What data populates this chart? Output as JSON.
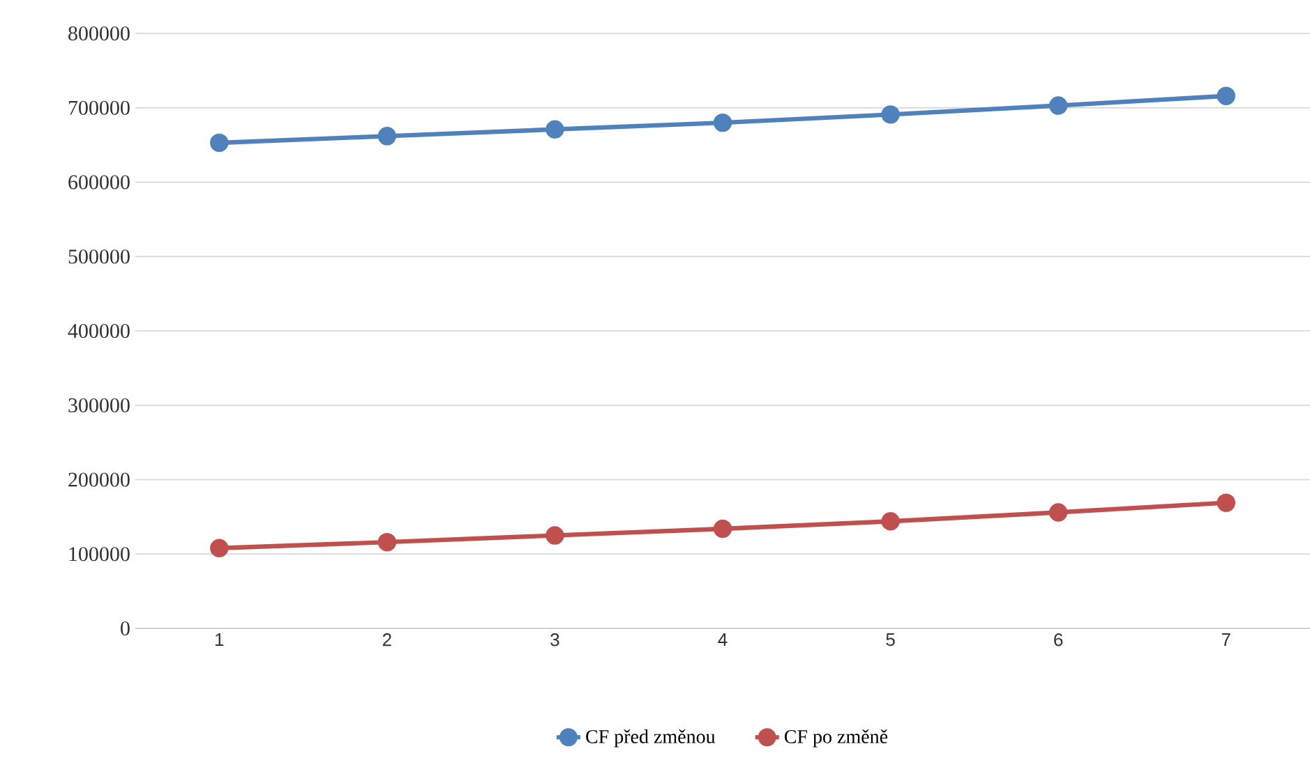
{
  "chart_data": {
    "type": "line",
    "categories": [
      "1",
      "2",
      "3",
      "4",
      "5",
      "6",
      "7"
    ],
    "series": [
      {
        "name": "CF před změnou",
        "color": "#4f81bd",
        "values": [
          653000,
          662000,
          671000,
          680000,
          691000,
          703000,
          716000
        ]
      },
      {
        "name": "CF po změně",
        "color": "#c0504d",
        "values": [
          108000,
          116000,
          125000,
          134000,
          144000,
          156000,
          169000
        ]
      }
    ],
    "ylim": [
      0,
      800000
    ],
    "yticks": [
      0,
      100000,
      200000,
      300000,
      400000,
      500000,
      600000,
      700000,
      800000
    ],
    "grid": "y",
    "legend": "bottom",
    "marker": "circle",
    "line_style": "solid"
  }
}
